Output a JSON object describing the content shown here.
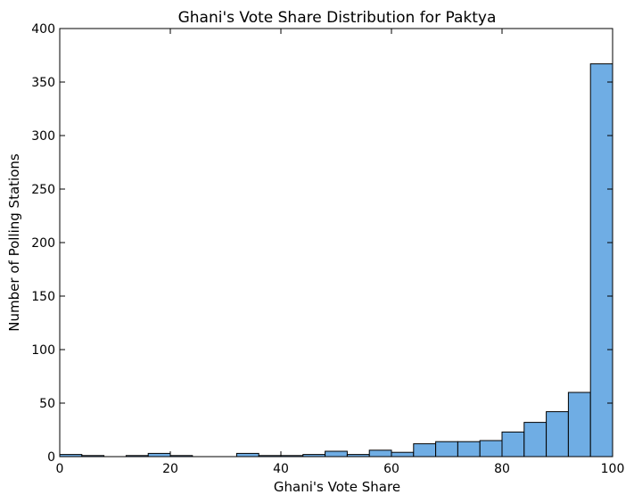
{
  "chart_data": {
    "type": "bar",
    "title": "Ghani's Vote Share Distribution for Paktya",
    "xlabel": "Ghani's Vote Share",
    "ylabel": "Number of Polling Stations",
    "xlim": [
      0,
      100
    ],
    "ylim": [
      0,
      400
    ],
    "x_ticks": [
      "0",
      "20",
      "40",
      "60",
      "80",
      "100"
    ],
    "y_ticks": [
      "0",
      "50",
      "100",
      "150",
      "200",
      "250",
      "300",
      "350",
      "400"
    ],
    "bin_edges": [
      0,
      4,
      8,
      12,
      16,
      20,
      24,
      28,
      32,
      36,
      40,
      44,
      48,
      52,
      56,
      60,
      64,
      68,
      72,
      76,
      80,
      84,
      88,
      92,
      96,
      100
    ],
    "values": [
      2,
      1,
      0,
      1,
      3,
      1,
      0,
      0,
      3,
      1,
      1,
      2,
      5,
      2,
      6,
      4,
      12,
      14,
      14,
      15,
      23,
      32,
      42,
      60,
      367
    ],
    "bar_color": "#6fadE4",
    "edge_color": "#000000",
    "grid": false,
    "legend": "none"
  }
}
